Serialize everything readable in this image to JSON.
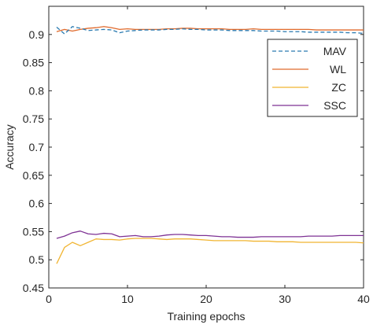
{
  "chart_data": {
    "type": "line",
    "title": "",
    "xlabel": "Training epochs",
    "ylabel": "Accuracy",
    "xlim": [
      0,
      40
    ],
    "ylim": [
      0.45,
      0.95
    ],
    "xticks": [
      0,
      10,
      20,
      30,
      40
    ],
    "xtick_labels": [
      "0",
      "10",
      "20",
      "30",
      "40"
    ],
    "yticks": [
      0.45,
      0.5,
      0.55,
      0.6,
      0.65,
      0.7,
      0.75,
      0.8,
      0.85,
      0.9
    ],
    "ytick_labels": [
      "0.45",
      "0.5",
      "0.55",
      "0.6",
      "0.65",
      "0.7",
      "0.75",
      "0.8",
      "0.85",
      "0.9"
    ],
    "grid": false,
    "legend_position": "top-right",
    "x": [
      1,
      2,
      3,
      4,
      5,
      6,
      7,
      8,
      9,
      10,
      11,
      12,
      13,
      14,
      15,
      16,
      17,
      18,
      19,
      20,
      21,
      22,
      23,
      24,
      25,
      26,
      27,
      28,
      29,
      30,
      31,
      32,
      33,
      34,
      35,
      36,
      37,
      38,
      39,
      40
    ],
    "series": [
      {
        "name": "MAV",
        "color": "#2a7ab0",
        "dash": "dashed",
        "values": [
          0.913,
          0.901,
          0.914,
          0.911,
          0.907,
          0.908,
          0.909,
          0.908,
          0.903,
          0.906,
          0.907,
          0.908,
          0.908,
          0.908,
          0.909,
          0.909,
          0.91,
          0.909,
          0.909,
          0.908,
          0.908,
          0.908,
          0.907,
          0.907,
          0.907,
          0.907,
          0.906,
          0.906,
          0.906,
          0.905,
          0.905,
          0.905,
          0.904,
          0.904,
          0.904,
          0.904,
          0.904,
          0.903,
          0.903,
          0.902
        ]
      },
      {
        "name": "WL",
        "color": "#e06a2c",
        "dash": "solid",
        "values": [
          0.905,
          0.909,
          0.906,
          0.909,
          0.911,
          0.912,
          0.914,
          0.912,
          0.909,
          0.91,
          0.909,
          0.909,
          0.909,
          0.909,
          0.91,
          0.91,
          0.911,
          0.911,
          0.91,
          0.91,
          0.91,
          0.91,
          0.909,
          0.909,
          0.909,
          0.91,
          0.909,
          0.909,
          0.909,
          0.909,
          0.909,
          0.909,
          0.909,
          0.908,
          0.908,
          0.908,
          0.908,
          0.908,
          0.908,
          0.908
        ]
      },
      {
        "name": "ZC",
        "color": "#f1b532",
        "dash": "solid",
        "values": [
          0.493,
          0.522,
          0.531,
          0.525,
          0.531,
          0.537,
          0.536,
          0.536,
          0.535,
          0.537,
          0.538,
          0.538,
          0.538,
          0.537,
          0.536,
          0.537,
          0.537,
          0.537,
          0.536,
          0.535,
          0.534,
          0.534,
          0.534,
          0.534,
          0.534,
          0.533,
          0.533,
          0.533,
          0.532,
          0.532,
          0.532,
          0.531,
          0.531,
          0.531,
          0.531,
          0.531,
          0.531,
          0.531,
          0.531,
          0.53
        ]
      },
      {
        "name": "SSC",
        "color": "#7e3294",
        "dash": "solid",
        "values": [
          0.538,
          0.542,
          0.548,
          0.551,
          0.546,
          0.545,
          0.547,
          0.546,
          0.541,
          0.542,
          0.543,
          0.541,
          0.541,
          0.542,
          0.544,
          0.545,
          0.545,
          0.544,
          0.543,
          0.543,
          0.542,
          0.541,
          0.541,
          0.54,
          0.54,
          0.54,
          0.541,
          0.541,
          0.541,
          0.541,
          0.541,
          0.541,
          0.542,
          0.542,
          0.542,
          0.542,
          0.543,
          0.543,
          0.543,
          0.543
        ]
      }
    ]
  }
}
